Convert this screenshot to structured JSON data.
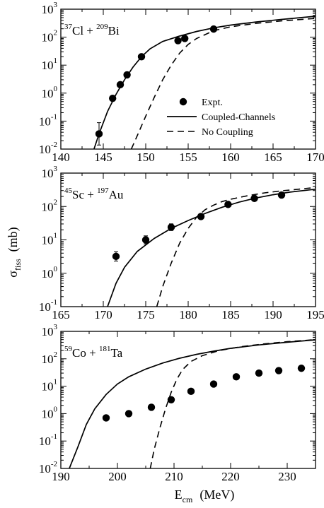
{
  "chart_data": [
    {
      "type": "scatter",
      "reaction": {
        "a": "37",
        "sym1": "Cl",
        "b": "209",
        "sym2": "Bi"
      },
      "xlim": [
        140,
        170
      ],
      "ylog_exponents": [
        -2,
        3
      ],
      "xticks": [
        140,
        145,
        150,
        155,
        160,
        165,
        170
      ],
      "legend": {
        "placement": "center-right",
        "entries": [
          {
            "kind": "marker",
            "label": "Expt."
          },
          {
            "kind": "solid",
            "label": "Coupled-Channels"
          },
          {
            "kind": "dashed",
            "label": "No Coupling"
          }
        ]
      },
      "series": [
        {
          "name": "Expt.",
          "kind": "points",
          "x": [
            144.5,
            146.1,
            147.0,
            147.8,
            149.5,
            153.8,
            154.6,
            158.0
          ],
          "y": [
            0.035,
            0.65,
            2.0,
            4.5,
            20,
            75,
            90,
            195
          ],
          "err": [
            0.4,
            0.07,
            0.07,
            0.07,
            0.06,
            0.09,
            0.06,
            0.06
          ]
        },
        {
          "name": "Coupled-Channels",
          "kind": "solid",
          "x": [
            143.8,
            144.5,
            145.5,
            146.5,
            147.5,
            148.5,
            149.5,
            150.5,
            152,
            154,
            156,
            158,
            160,
            163,
            166,
            170
          ],
          "y": [
            0.008,
            0.035,
            0.22,
            0.9,
            3.0,
            8.5,
            20,
            38,
            70,
            110,
            160,
            215,
            270,
            350,
            430,
            560
          ]
        },
        {
          "name": "No Coupling",
          "kind": "dashed",
          "x": [
            148.3,
            149,
            150,
            151,
            152,
            153,
            154,
            155,
            156,
            158,
            160,
            163,
            166,
            170
          ],
          "y": [
            0.01,
            0.03,
            0.15,
            0.7,
            3.0,
            10,
            27,
            55,
            90,
            170,
            235,
            310,
            380,
            470
          ]
        }
      ]
    },
    {
      "type": "scatter",
      "reaction": {
        "a": "45",
        "sym1": "Sc",
        "b": "197",
        "sym2": "Au"
      },
      "xlim": [
        165,
        195
      ],
      "ylog_exponents": [
        -1,
        3
      ],
      "xticks": [
        165,
        170,
        175,
        180,
        185,
        190,
        195
      ],
      "series": [
        {
          "name": "Expt.",
          "kind": "points",
          "x": [
            171.5,
            175.0,
            178.0,
            181.5,
            184.7,
            187.8,
            191.0
          ],
          "y": [
            3.2,
            10.0,
            24.0,
            50.0,
            115.0,
            175.0,
            220.0
          ],
          "err": [
            0.14,
            0.12,
            0.1,
            0.08,
            0.05,
            0.05,
            0.05
          ]
        },
        {
          "name": "Coupled-Channels",
          "kind": "solid",
          "x": [
            170.5,
            171.5,
            172.5,
            174,
            176,
            178,
            180,
            182,
            184,
            186,
            188,
            190,
            192,
            195
          ],
          "y": [
            0.1,
            0.5,
            1.5,
            4.5,
            11,
            22,
            38,
            62,
            95,
            135,
            180,
            225,
            270,
            330
          ]
        },
        {
          "name": "No Coupling",
          "kind": "dashed",
          "x": [
            176.3,
            177,
            178,
            179,
            180,
            181,
            182,
            183,
            184,
            185,
            187,
            189,
            191,
            193,
            195
          ],
          "y": [
            0.1,
            0.4,
            2.0,
            8,
            22,
            48,
            80,
            110,
            140,
            165,
            210,
            255,
            295,
            330,
            370
          ]
        }
      ]
    },
    {
      "type": "scatter",
      "reaction": {
        "a": "59",
        "sym1": "Co",
        "b": "181",
        "sym2": "Ta"
      },
      "xlim": [
        190,
        235
      ],
      "ylog_exponents": [
        -2,
        3
      ],
      "xticks": [
        190,
        200,
        210,
        220,
        230
      ],
      "xlabel": {
        "main": "E",
        "sub": "cm",
        "unit": "(MeV)"
      },
      "series": [
        {
          "name": "Expt.",
          "kind": "points",
          "x": [
            198,
            202,
            206,
            209.5,
            213,
            217,
            221,
            225,
            228.5,
            232.5
          ],
          "y": [
            0.7,
            1.0,
            1.7,
            3.2,
            6.5,
            12,
            22,
            30,
            37,
            45
          ],
          "err": [
            0,
            0,
            0,
            0,
            0,
            0,
            0,
            0,
            0,
            0
          ]
        },
        {
          "name": "Coupled-Channels",
          "kind": "solid",
          "x": [
            191.5,
            193,
            194.5,
            196,
            198,
            200,
            202,
            205,
            208,
            211,
            214,
            217,
            220,
            225,
            230,
            235
          ],
          "y": [
            0.01,
            0.06,
            0.4,
            1.5,
            5,
            12,
            22,
            42,
            70,
            105,
            145,
            190,
            240,
            320,
            400,
            490
          ]
        },
        {
          "name": "No Coupling",
          "kind": "dashed",
          "x": [
            205.8,
            206.5,
            207.5,
            208.5,
            209.5,
            210.5,
            211.5,
            213,
            215,
            218,
            222,
            226,
            230,
            235
          ],
          "y": [
            0.01,
            0.05,
            0.3,
            1.5,
            6,
            18,
            40,
            80,
            130,
            200,
            280,
            350,
            420,
            500
          ]
        }
      ]
    }
  ],
  "ylabel": {
    "main": "σ",
    "sub": "fiss",
    "unit": "(mb)"
  }
}
